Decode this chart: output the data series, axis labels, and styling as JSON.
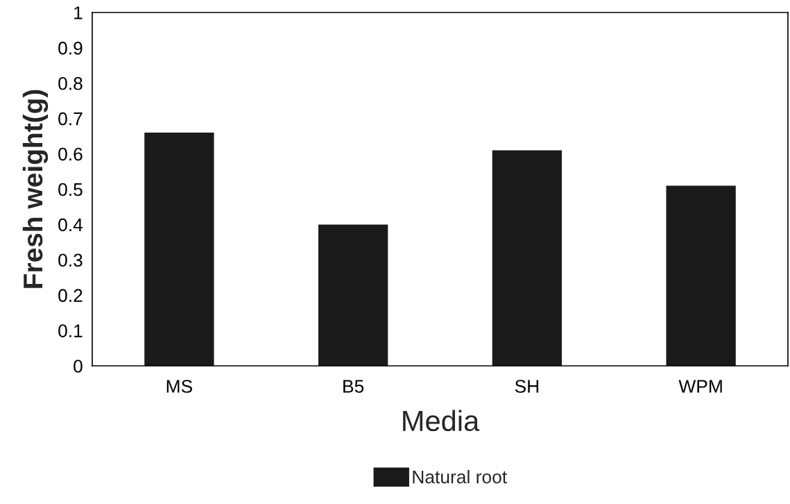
{
  "chart_data": {
    "type": "bar",
    "xlabel": "Media",
    "ylabel": "Fresh weight(g)",
    "categories": [
      "MS",
      "B5",
      "SH",
      "WPM"
    ],
    "series": [
      {
        "name": "Natural root",
        "color": "#1a1a1a",
        "values": [
          0.66,
          0.4,
          0.61,
          0.51
        ]
      }
    ],
    "ylim": [
      0,
      1
    ],
    "yticks": [
      0,
      0.1,
      0.2,
      0.3,
      0.4,
      0.5,
      0.6,
      0.7,
      0.8,
      0.9,
      1
    ],
    "grid": false,
    "legend": "bottom"
  }
}
